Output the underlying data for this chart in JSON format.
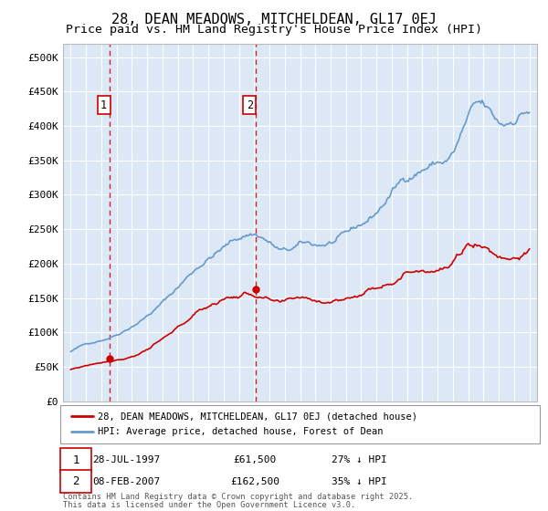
{
  "title": "28, DEAN MEADOWS, MITCHELDEAN, GL17 0EJ",
  "subtitle": "Price paid vs. HM Land Registry's House Price Index (HPI)",
  "legend_line1": "28, DEAN MEADOWS, MITCHELDEAN, GL17 0EJ (detached house)",
  "legend_line2": "HPI: Average price, detached house, Forest of Dean",
  "sale1_date_label": "28-JUL-1997",
  "sale1_price": 61500,
  "sale1_pct": "27% ↓ HPI",
  "sale2_date_label": "08-FEB-2007",
  "sale2_price": 162500,
  "sale2_pct": "35% ↓ HPI",
  "footnote_line1": "Contains HM Land Registry data © Crown copyright and database right 2025.",
  "footnote_line2": "This data is licensed under the Open Government Licence v3.0.",
  "sale1_x": 1997.57,
  "sale2_x": 2007.1,
  "ylim": [
    0,
    520000
  ],
  "xlim": [
    1994.5,
    2025.5
  ],
  "red_color": "#cc0000",
  "blue_color": "#6699cc",
  "bg_color": "#dce8f5",
  "grid_color": "#ffffff",
  "title_fontsize": 11,
  "subtitle_fontsize": 9.5
}
